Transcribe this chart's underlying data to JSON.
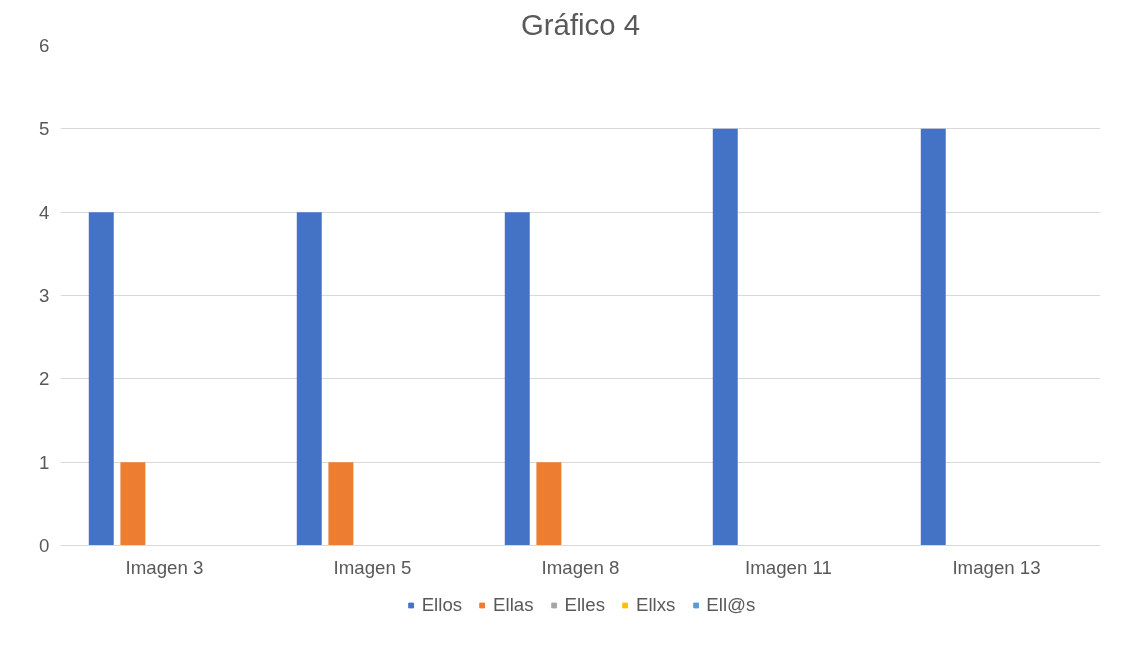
{
  "chart_data": {
    "type": "bar",
    "title": "Gráfico 4",
    "categories": [
      "Imagen 3",
      "Imagen 5",
      "Imagen 8",
      "Imagen 11",
      "Imagen 13"
    ],
    "series": [
      {
        "name": "Ellos",
        "color": "#4472c4",
        "values": [
          4,
          4,
          4,
          5,
          5
        ]
      },
      {
        "name": "Ellas",
        "color": "#ed7d31",
        "values": [
          1,
          1,
          1,
          0,
          0
        ]
      },
      {
        "name": "Elles",
        "color": "#a5a5a5",
        "values": [
          0,
          0,
          0,
          0,
          0
        ]
      },
      {
        "name": "Ellxs",
        "color": "#ffc000",
        "values": [
          0,
          0,
          0,
          0,
          0
        ]
      },
      {
        "name": "Ell@s",
        "color": "#5b9bd5",
        "values": [
          0,
          0,
          0,
          0,
          0
        ]
      }
    ],
    "ylim": [
      0,
      6
    ],
    "yticks": [
      0,
      1,
      2,
      3,
      4,
      5,
      6
    ],
    "grid": "y",
    "legend": "bottom"
  }
}
